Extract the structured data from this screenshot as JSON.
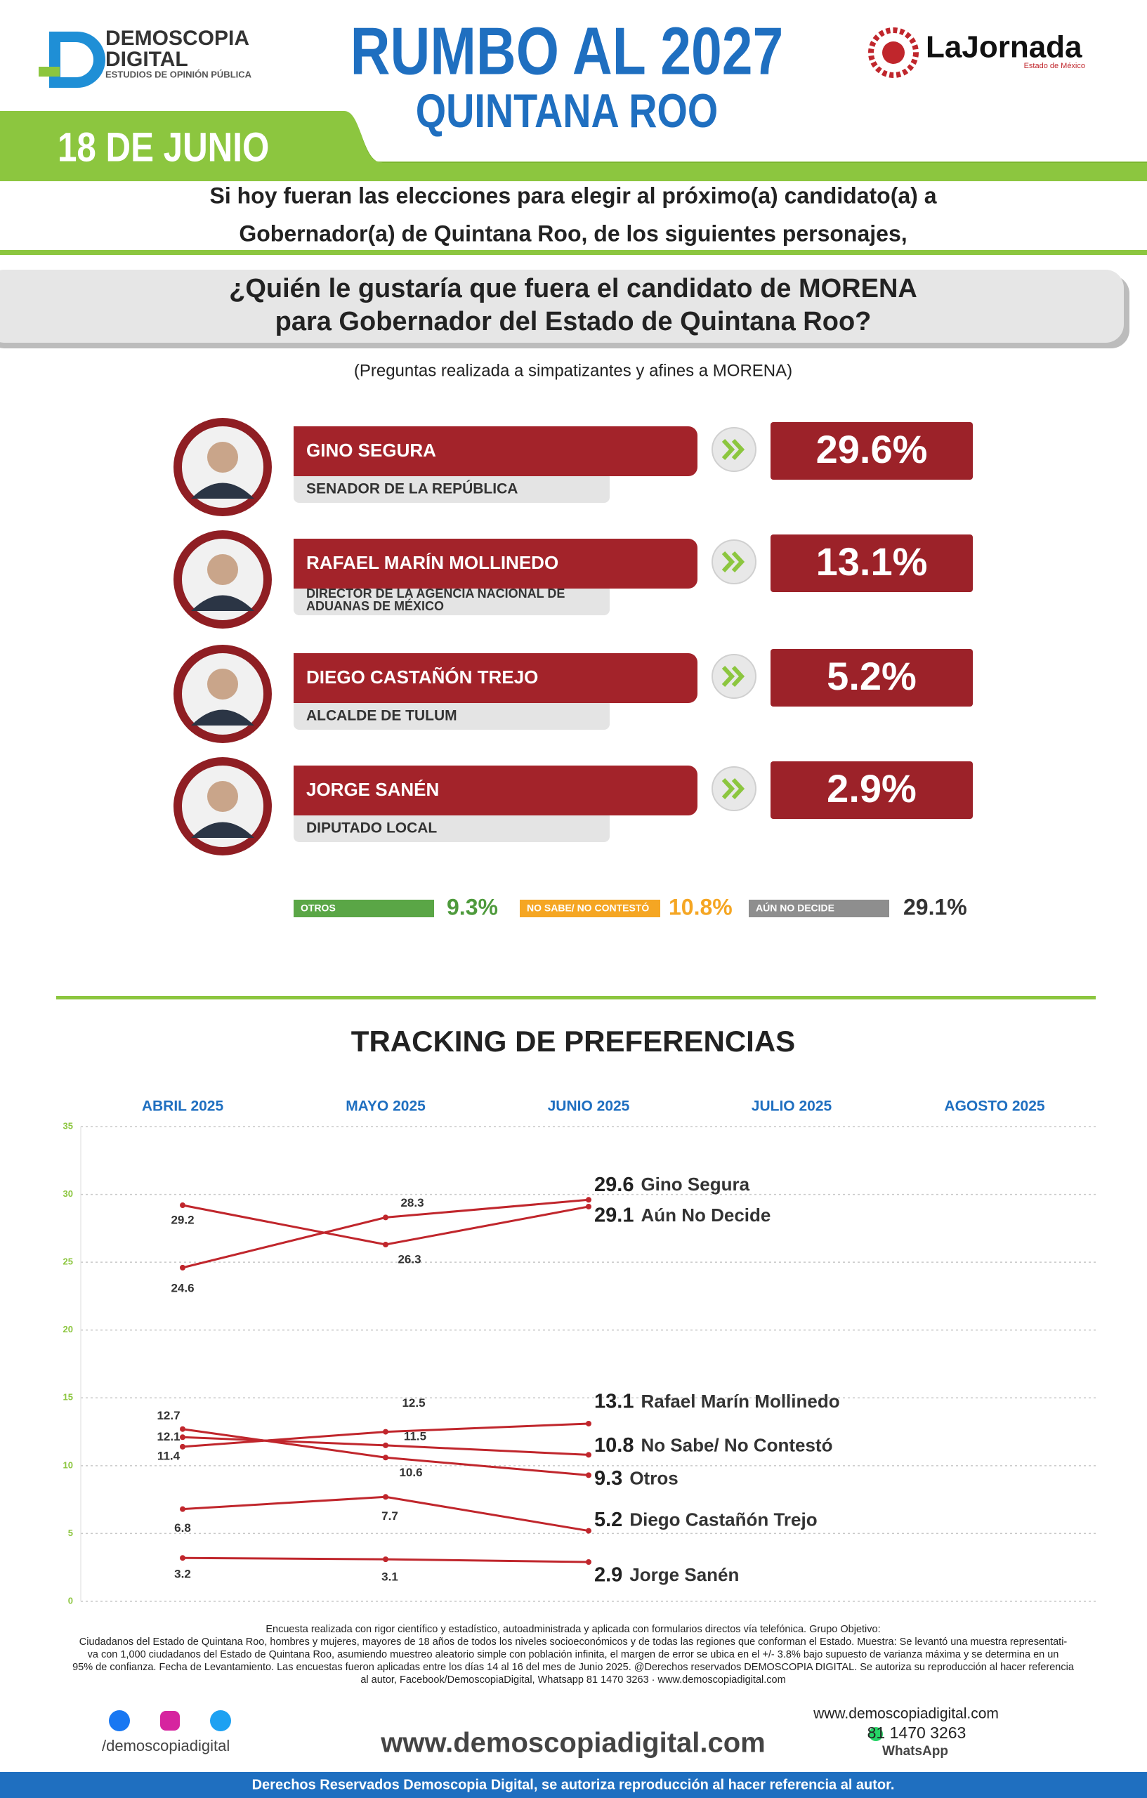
{
  "header": {
    "brand": {
      "name": "DEMOSCOPIA",
      "name2": "DIGITAL",
      "tagline": "ESTUDIOS DE OPINIÓN PÚBLICA"
    },
    "title": "RUMBO AL 2027",
    "subtitle": "QUINTANA ROO",
    "date": "18 DE JUNIO",
    "partner": {
      "name": "LaJornada",
      "region": "Estado de México"
    }
  },
  "intro": [
    "Si hoy fueran las elecciones para elegir al próximo(a) candidato(a) a",
    "Gobernador(a) de Quintana Roo, de los siguientes personajes,"
  ],
  "question": [
    "¿Quién le gustaría que fuera el candidato de MORENA",
    "para Gobernador del Estado de Quintana Roo?"
  ],
  "note": "(Preguntas realizada a simpatizantes y afines a MORENA)",
  "candidates": [
    {
      "name": "GINO SEGURA",
      "position": [
        "SENADOR DE LA REPÚBLICA"
      ],
      "result": "29.6%"
    },
    {
      "name": "RAFAEL MARÍN MOLLINEDO",
      "position": [
        "DIRECTOR DE LA AGENCIA NACIONAL DE",
        "ADUANAS DE MÉXICO"
      ],
      "result": "13.1%"
    },
    {
      "name": "DIEGO CASTAÑÓN TREJO",
      "position": [
        "ALCALDE DE TULUM"
      ],
      "result": "5.2%"
    },
    {
      "name": "JORGE SANÉN",
      "position": [
        "DIPUTADO LOCAL"
      ],
      "result": "2.9%"
    }
  ],
  "others": [
    {
      "label": "OTROS",
      "result": "9.3%",
      "color": "#5aa646",
      "text_color": "#4e9a3c"
    },
    {
      "label": "NO SABE/ NO CONTESTÓ",
      "result": "10.8%",
      "color": "#f5a623",
      "text_color": "#f5a623"
    },
    {
      "label": "AÚN NO DECIDE",
      "result": "29.1%",
      "color": "#8e8e8e",
      "text_color": "#333333"
    }
  ],
  "chart_data": {
    "type": "line",
    "title": "TRACKING DE PREFERENCIAS",
    "categories": [
      "ABRIL 2025",
      "MAYO 2025",
      "JUNIO 2025",
      "JULIO 2025",
      "AGOSTO 2025"
    ],
    "ylim": [
      0,
      35
    ],
    "yticks": [
      0,
      5,
      10,
      15,
      20,
      25,
      30,
      35
    ],
    "grid": true,
    "series": [
      {
        "name": "Gino Segura",
        "color": "#c0262c",
        "values": [
          24.6,
          28.3,
          29.6,
          null,
          null
        ]
      },
      {
        "name": "Aún No Decide",
        "color": "#c0262c",
        "values": [
          29.2,
          26.3,
          29.1,
          null,
          null
        ]
      },
      {
        "name": "Rafael Marín Mollinedo",
        "color": "#c0262c",
        "values": [
          11.4,
          12.5,
          13.1,
          null,
          null
        ]
      },
      {
        "name": "No Sabe/ No Contestó",
        "color": "#c0262c",
        "values": [
          12.1,
          11.5,
          10.8,
          null,
          null
        ]
      },
      {
        "name": "Otros",
        "color": "#c0262c",
        "values": [
          12.7,
          10.6,
          9.3,
          null,
          null
        ]
      },
      {
        "name": "Diego Castañón Trejo",
        "color": "#c0262c",
        "values": [
          6.8,
          7.7,
          5.2,
          null,
          null
        ]
      },
      {
        "name": "Jorge Sanén",
        "color": "#c0262c",
        "values": [
          3.2,
          3.1,
          2.9,
          null,
          null
        ]
      }
    ]
  },
  "footer": {
    "methodology": [
      "Encuesta realizada con rigor científico y estadístico, autoadministrada y aplicada con formularios directos vía telefónica. Grupo Objetivo:",
      "Ciudadanos del Estado de Quintana Roo, hombres y mujeres, mayores de 18 años de todos los niveles socioeconómicos y de todas las regiones que conforman el Estado. Muestra: Se levantó una muestra representati-",
      "va con 1,000 ciudadanos del Estado de Quintana Roo, asumiendo muestreo aleatorio simple con población infinita, el margen de error se ubica en el +/- 3.8% bajo supuesto de varianza máxima y se determina en un",
      "95% de confianza. Fecha de Levantamiento. Las encuestas fueron aplicadas entre los días 14 al 16 del mes de Junio 2025. @Derechos reservados DEMOSCOPIA DIGITAL. Se autoriza su reproducción al hacer referencia",
      "al autor, Facebook/DemoscopiaDigital, Whatsapp 81 1470 3263 · www.demoscopiadigital.com"
    ],
    "social": "/demoscopiadigital",
    "website": "www.demoscopiadigital.com",
    "phone": "81 1470 3263",
    "phone_label": "WhatsApp",
    "url": "www.demoscopiadigital.com",
    "rights": "Derechos Reservados Demoscopia Digital, se autoriza reproducción al hacer referencia al autor."
  }
}
